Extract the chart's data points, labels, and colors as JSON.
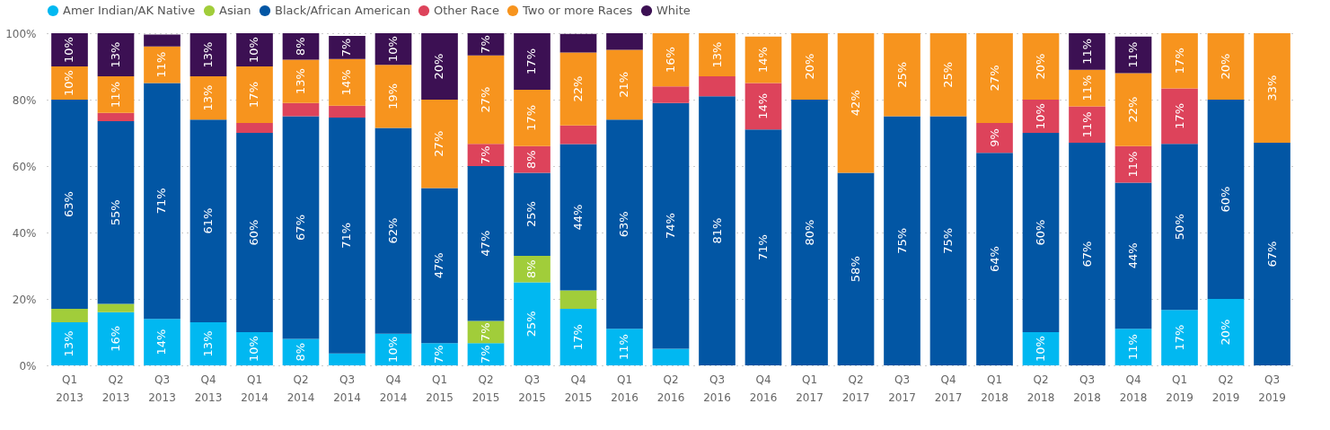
{
  "chart_data": {
    "type": "bar",
    "stacked": true,
    "categories": [
      "Q1 2013",
      "Q2 2013",
      "Q3 2013",
      "Q4 2013",
      "Q1 2014",
      "Q2 2014",
      "Q3 2014",
      "Q4 2014",
      "Q1 2015",
      "Q2 2015",
      "Q3 2015",
      "Q4 2015",
      "Q1 2016",
      "Q2 2016",
      "Q3 2016",
      "Q4 2016",
      "Q1 2017",
      "Q2 2017",
      "Q3 2017",
      "Q4 2017",
      "Q1 2018",
      "Q2 2018",
      "Q3 2018",
      "Q4 2018",
      "Q1 2019",
      "Q2 2019",
      "Q3 2019"
    ],
    "series": [
      {
        "name": "Amer Indian/AK Native",
        "color": "#01b8f1",
        "values": [
          13,
          16,
          14,
          13,
          10,
          8,
          3.6,
          9.5,
          6.7,
          6.7,
          25,
          17,
          11,
          5,
          null,
          null,
          null,
          null,
          null,
          null,
          null,
          10,
          null,
          11,
          16.7,
          20,
          null
        ],
        "value_labels": [
          "13%",
          "16%",
          "14%",
          "13%",
          "10%",
          "8%",
          null,
          "10%",
          "7%",
          "7%",
          "25%",
          "17%",
          "11%",
          null,
          null,
          null,
          null,
          null,
          null,
          null,
          null,
          "10%",
          null,
          "11%",
          "17%",
          "20%",
          null
        ]
      },
      {
        "name": "Asian",
        "color": "#a1cd3a",
        "values": [
          4,
          2.5,
          null,
          null,
          null,
          null,
          null,
          null,
          null,
          6.7,
          8,
          5.6,
          null,
          null,
          null,
          null,
          null,
          null,
          null,
          null,
          null,
          null,
          null,
          null,
          null,
          null,
          null
        ],
        "value_labels": [
          null,
          null,
          null,
          null,
          null,
          null,
          null,
          null,
          null,
          "7%",
          "8%",
          null,
          null,
          null,
          null,
          null,
          null,
          null,
          null,
          null,
          null,
          null,
          null,
          null,
          null,
          null,
          null
        ]
      },
      {
        "name": "Black/African American",
        "color": "#0256a4",
        "values": [
          63,
          55,
          71,
          61,
          60,
          67,
          71,
          62,
          46.7,
          46.6,
          25,
          44,
          63,
          74,
          81,
          71,
          80,
          58,
          75,
          75,
          64,
          60,
          67,
          44,
          50,
          60,
          67
        ],
        "value_labels": [
          "63%",
          "55%",
          "71%",
          "61%",
          "60%",
          "67%",
          "71%",
          "62%",
          "47%",
          "47%",
          "25%",
          "44%",
          "63%",
          "74%",
          "81%",
          "71%",
          "80%",
          "58%",
          "75%",
          "75%",
          "64%",
          "60%",
          "67%",
          "44%",
          "50%",
          "60%",
          "67%"
        ]
      },
      {
        "name": "Other Race",
        "color": "#dd435b",
        "values": [
          null,
          2.5,
          null,
          null,
          3,
          4,
          3.6,
          null,
          null,
          6.7,
          8,
          5.6,
          null,
          5,
          6,
          14,
          null,
          null,
          null,
          null,
          9,
          10,
          11,
          11,
          16.7,
          null,
          null
        ],
        "value_labels": [
          null,
          null,
          null,
          null,
          null,
          null,
          null,
          null,
          null,
          "7%",
          "8%",
          null,
          null,
          null,
          null,
          "14%",
          null,
          null,
          null,
          null,
          "9%",
          "10%",
          "11%",
          "11%",
          "17%",
          null,
          null
        ]
      },
      {
        "name": "Two or more Races",
        "color": "#f7941e",
        "values": [
          10,
          11,
          11,
          13,
          17,
          13,
          14,
          19,
          26.6,
          26.6,
          17,
          22,
          21,
          16,
          13,
          14,
          20,
          42,
          25,
          25,
          27,
          20,
          11,
          22,
          16.6,
          20,
          33
        ],
        "value_labels": [
          "10%",
          "11%",
          "11%",
          "13%",
          "17%",
          "13%",
          "14%",
          "19%",
          "27%",
          "27%",
          "17%",
          "22%",
          "21%",
          "16%",
          "13%",
          "14%",
          "20%",
          "42%",
          "25%",
          "25%",
          "27%",
          "20%",
          "11%",
          "22%",
          "17%",
          "20%",
          "33%"
        ]
      },
      {
        "name": "White",
        "color": "#3c1053",
        "values": [
          10,
          13,
          3.6,
          13,
          10,
          8,
          7,
          9.5,
          20,
          6.7,
          17,
          5.6,
          5,
          null,
          null,
          null,
          null,
          null,
          null,
          null,
          null,
          null,
          11,
          11,
          null,
          null,
          null
        ],
        "value_labels": [
          "10%",
          "13%",
          null,
          "13%",
          "10%",
          "8%",
          "7%",
          "10%",
          "20%",
          "7%",
          "17%",
          null,
          null,
          null,
          null,
          null,
          null,
          null,
          null,
          null,
          null,
          null,
          "11%",
          "11%",
          null,
          null,
          null
        ]
      }
    ],
    "ylim": [
      0,
      100
    ],
    "yticks": [
      {
        "value": 0,
        "label": "0%"
      },
      {
        "value": 20,
        "label": "20%"
      },
      {
        "value": 40,
        "label": "40%"
      },
      {
        "value": 60,
        "label": "60%"
      },
      {
        "value": 80,
        "label": "80%"
      },
      {
        "value": 100,
        "label": "100%"
      }
    ],
    "grid": "y",
    "legend": "top"
  }
}
